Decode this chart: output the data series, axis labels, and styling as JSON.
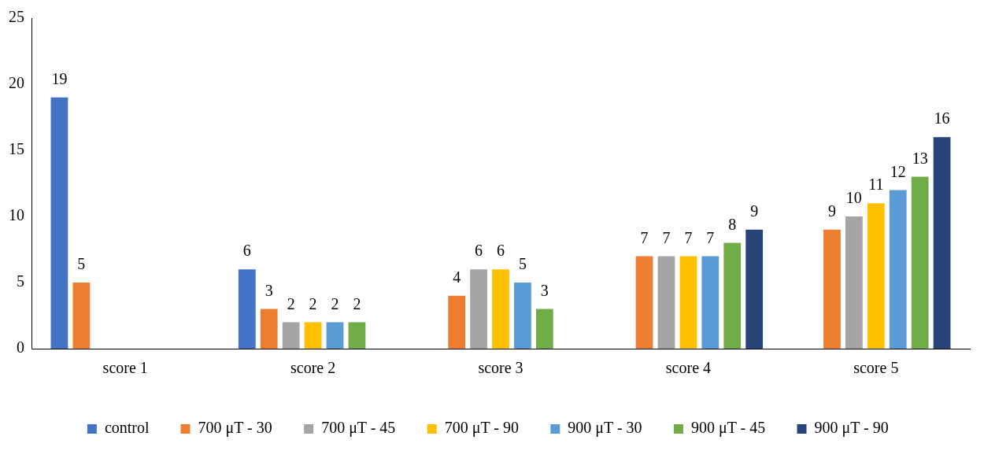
{
  "chart_data": {
    "type": "bar",
    "categories": [
      "score 1",
      "score 2",
      "score 3",
      "score 4",
      "score 5"
    ],
    "series": [
      {
        "name": "control",
        "color": "#4472c4",
        "values": [
          19,
          6,
          null,
          null,
          null
        ]
      },
      {
        "name": "700 μT - 30",
        "color": "#ed7d31",
        "values": [
          5,
          3,
          4,
          7,
          9
        ]
      },
      {
        "name": "700 μT - 45",
        "color": "#a5a5a5",
        "values": [
          null,
          2,
          6,
          7,
          10
        ]
      },
      {
        "name": "700 μT - 90",
        "color": "#ffc000",
        "values": [
          null,
          2,
          6,
          7,
          11
        ]
      },
      {
        "name": "900 μT - 30",
        "color": "#5b9bd5",
        "values": [
          null,
          2,
          5,
          7,
          12
        ]
      },
      {
        "name": "900 μT - 45",
        "color": "#70ad47",
        "values": [
          null,
          2,
          3,
          8,
          13
        ]
      },
      {
        "name": "900 μT - 90",
        "color": "#264478",
        "values": [
          null,
          null,
          null,
          9,
          16
        ]
      }
    ],
    "ylim": [
      0,
      25
    ],
    "yticks": [
      0,
      5,
      10,
      15,
      20,
      25
    ],
    "grid": false,
    "legend": "bottom",
    "data_labels": true
  }
}
